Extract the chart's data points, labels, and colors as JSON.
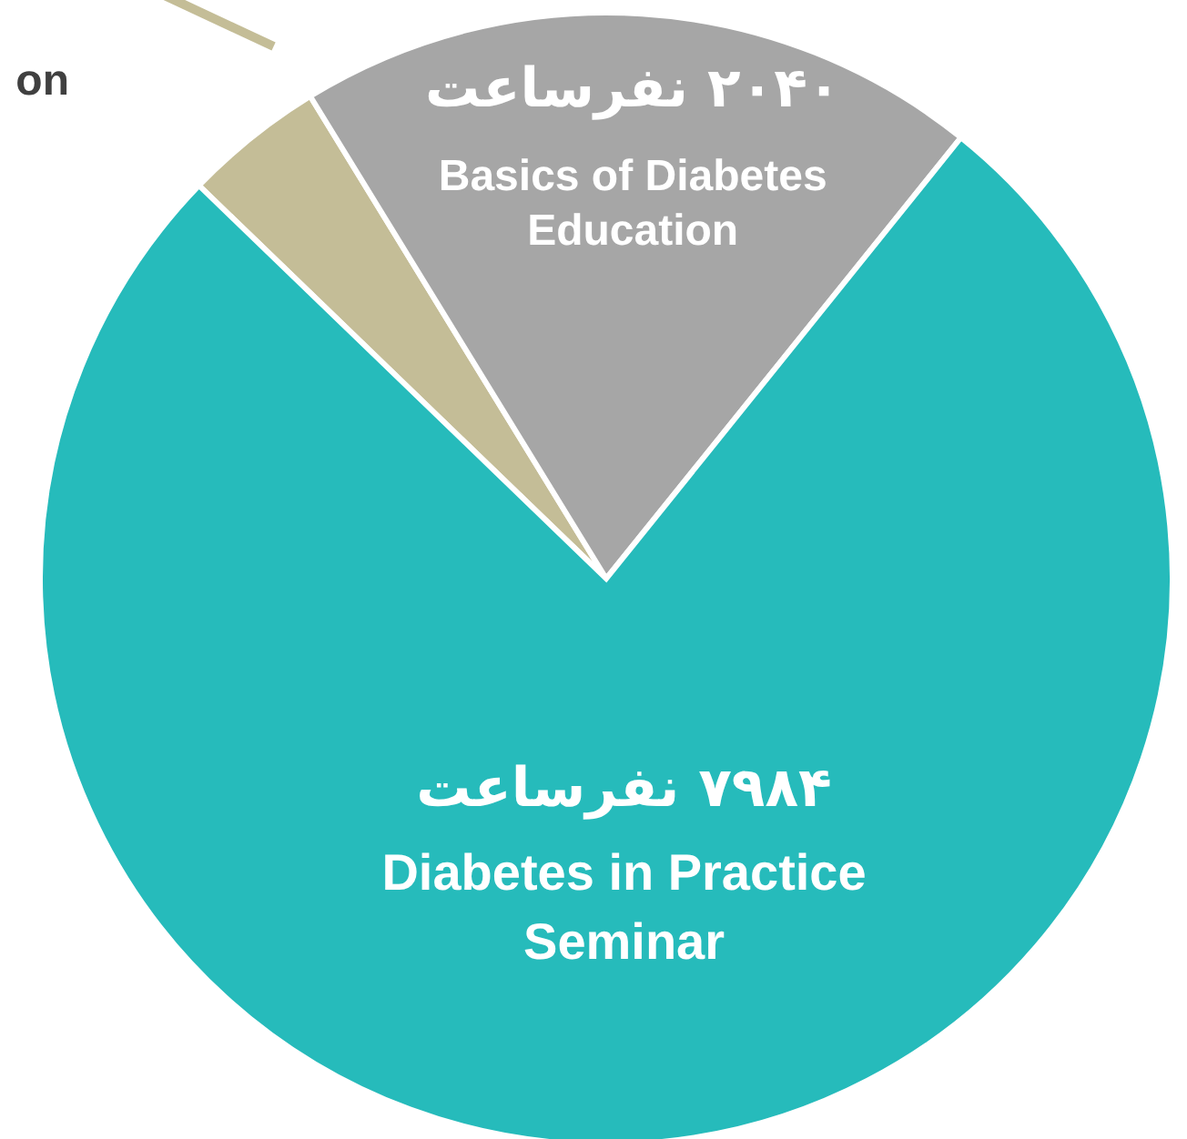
{
  "chart_data": {
    "type": "pie",
    "categories": [
      "on",
      "Basics of Diabetes Education",
      "Diabetes in Practice Seminar"
    ],
    "values": [
      420,
      2040,
      7984
    ],
    "value_labels": [
      null,
      "۲۰۴۰ نفرساعت",
      "۷۹۸۴ نفرساعت"
    ],
    "colors": [
      "#c4bd97",
      "#a6a6a6",
      "#26bbbb"
    ]
  }
}
